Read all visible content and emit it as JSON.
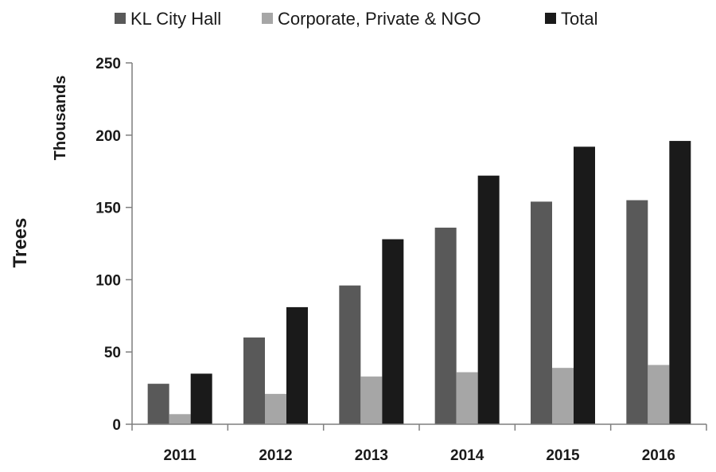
{
  "chart_data": {
    "type": "bar",
    "categories": [
      "2011",
      "2012",
      "2013",
      "2014",
      "2015",
      "2016"
    ],
    "series": [
      {
        "name": "KL City Hall",
        "color": "#595959",
        "values": [
          28,
          60,
          96,
          136,
          154,
          155
        ]
      },
      {
        "name": "Corporate, Private & NGO",
        "color": "#a6a6a6",
        "values": [
          7,
          21,
          33,
          36,
          39,
          41
        ]
      },
      {
        "name": "Total",
        "color": "#1a1a1a",
        "values": [
          35,
          81,
          128,
          172,
          192,
          196
        ]
      }
    ],
    "title": "",
    "xlabel": "",
    "ylabel": "Trees",
    "yunit": "Thousands",
    "ylim": [
      0,
      250
    ],
    "yticks": [
      "0",
      "50",
      "100",
      "150",
      "200",
      "250"
    ],
    "grid": false,
    "legend_position": "top"
  }
}
